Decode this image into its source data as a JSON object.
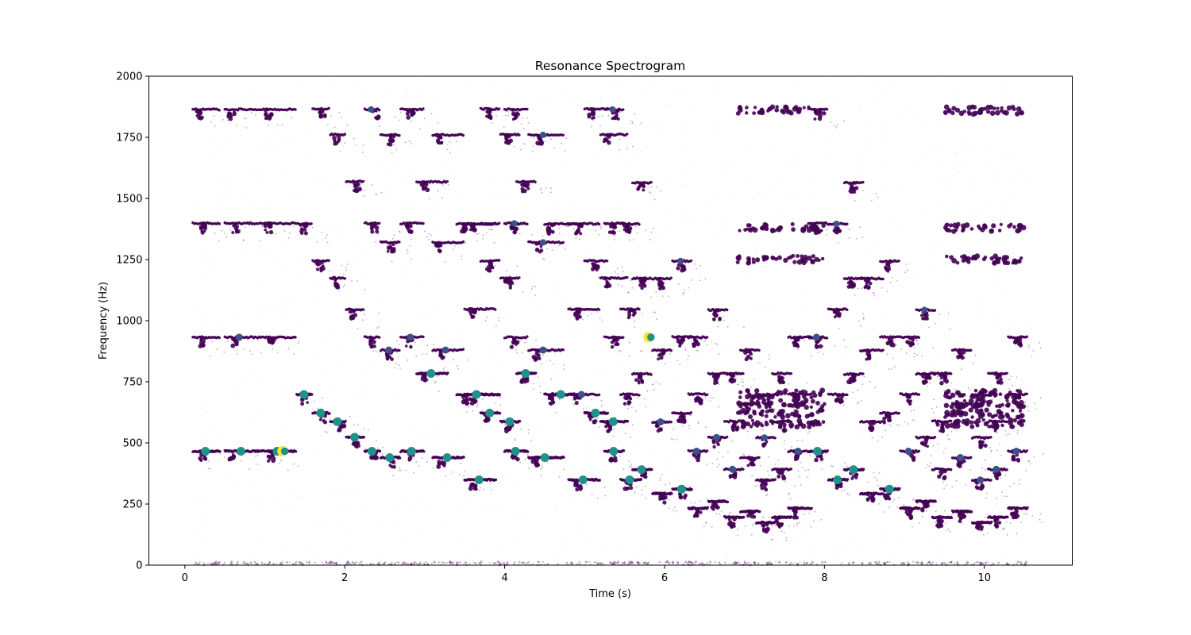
{
  "chart_data": {
    "type": "scatter",
    "title": "Resonance Spectrogram",
    "xlabel": "Time (s)",
    "ylabel": "Frequency (Hz)",
    "xlim": [
      -0.45,
      11.1
    ],
    "ylim": [
      0,
      2000
    ],
    "xticks": [
      0,
      2,
      4,
      6,
      8,
      10
    ],
    "yticks": [
      0,
      250,
      500,
      750,
      1000,
      1250,
      1500,
      1750,
      2000
    ],
    "grid": false,
    "legend": "none",
    "colormap": "viridis",
    "color_encoding": "point size and color increase with magnitude (viridis: dark purple = low, teal/green = mid, yellow = high)",
    "colors": {
      "low": "#440154",
      "low_mid": "#3b528b",
      "mid": "#21918c",
      "high": "#fde725"
    },
    "description": "Dense scatter of spectral peaks forming short horizontal note segments; harmonics at roughly 1x, 2x, 3x and 4x the fundamental.",
    "notes": [
      {
        "t0": 0.1,
        "t1": 0.45,
        "f": 466
      },
      {
        "t0": 0.5,
        "t1": 0.95,
        "f": 466
      },
      {
        "t0": 0.95,
        "t1": 1.4,
        "f": 466
      },
      {
        "t0": 1.4,
        "t1": 1.6,
        "f": 698
      },
      {
        "t0": 1.6,
        "t1": 1.82,
        "f": 622
      },
      {
        "t0": 1.82,
        "t1": 2.02,
        "f": 587
      },
      {
        "t0": 2.02,
        "t1": 2.25,
        "f": 523
      },
      {
        "t0": 2.25,
        "t1": 2.45,
        "f": 466
      },
      {
        "t0": 2.45,
        "t1": 2.7,
        "f": 440
      },
      {
        "t0": 2.7,
        "t1": 3.0,
        "f": 466
      },
      {
        "t0": 2.9,
        "t1": 3.3,
        "f": 784
      },
      {
        "t0": 3.1,
        "t1": 3.5,
        "f": 440
      },
      {
        "t0": 3.5,
        "t1": 3.9,
        "f": 349
      },
      {
        "t0": 3.4,
        "t1": 3.95,
        "f": 698
      },
      {
        "t0": 3.7,
        "t1": 3.95,
        "f": 622
      },
      {
        "t0": 3.95,
        "t1": 4.2,
        "f": 587
      },
      {
        "t0": 4.0,
        "t1": 4.3,
        "f": 466
      },
      {
        "t0": 4.15,
        "t1": 4.4,
        "f": 784
      },
      {
        "t0": 4.3,
        "t1": 4.75,
        "f": 440
      },
      {
        "t0": 4.5,
        "t1": 4.95,
        "f": 698
      },
      {
        "t0": 4.8,
        "t1": 5.2,
        "f": 349
      },
      {
        "t0": 5.0,
        "t1": 5.3,
        "f": 622
      },
      {
        "t0": 5.2,
        "t1": 5.55,
        "f": 587
      },
      {
        "t0": 5.25,
        "t1": 5.5,
        "f": 466
      },
      {
        "t0": 5.45,
        "t1": 5.7,
        "f": 349
      },
      {
        "t0": 5.6,
        "t1": 5.85,
        "f": 391
      },
      {
        "t0": 5.85,
        "t1": 6.1,
        "f": 293
      },
      {
        "t0": 6.1,
        "t1": 6.35,
        "f": 311
      },
      {
        "t0": 6.3,
        "t1": 6.55,
        "f": 233
      },
      {
        "t0": 6.55,
        "t1": 6.8,
        "f": 261
      },
      {
        "t0": 6.75,
        "t1": 7.0,
        "f": 196
      },
      {
        "t0": 6.95,
        "t1": 7.2,
        "f": 220
      },
      {
        "t0": 7.15,
        "t1": 7.4,
        "f": 174
      },
      {
        "t0": 7.35,
        "t1": 7.6,
        "f": 196
      },
      {
        "t0": 7.55,
        "t1": 7.85,
        "f": 233
      },
      {
        "t0": 7.8,
        "t1": 8.05,
        "f": 466
      },
      {
        "t0": 8.05,
        "t1": 8.3,
        "f": 349
      },
      {
        "t0": 8.25,
        "t1": 8.5,
        "f": 391
      },
      {
        "t0": 8.45,
        "t1": 8.75,
        "f": 293
      },
      {
        "t0": 8.7,
        "t1": 8.95,
        "f": 311
      },
      {
        "t0": 8.95,
        "t1": 9.2,
        "f": 233
      },
      {
        "t0": 9.15,
        "t1": 9.4,
        "f": 261
      },
      {
        "t0": 9.35,
        "t1": 9.6,
        "f": 196
      },
      {
        "t0": 9.6,
        "t1": 9.85,
        "f": 220
      },
      {
        "t0": 9.85,
        "t1": 10.1,
        "f": 174
      },
      {
        "t0": 10.05,
        "t1": 10.3,
        "f": 196
      },
      {
        "t0": 10.3,
        "t1": 10.55,
        "f": 233
      }
    ]
  }
}
